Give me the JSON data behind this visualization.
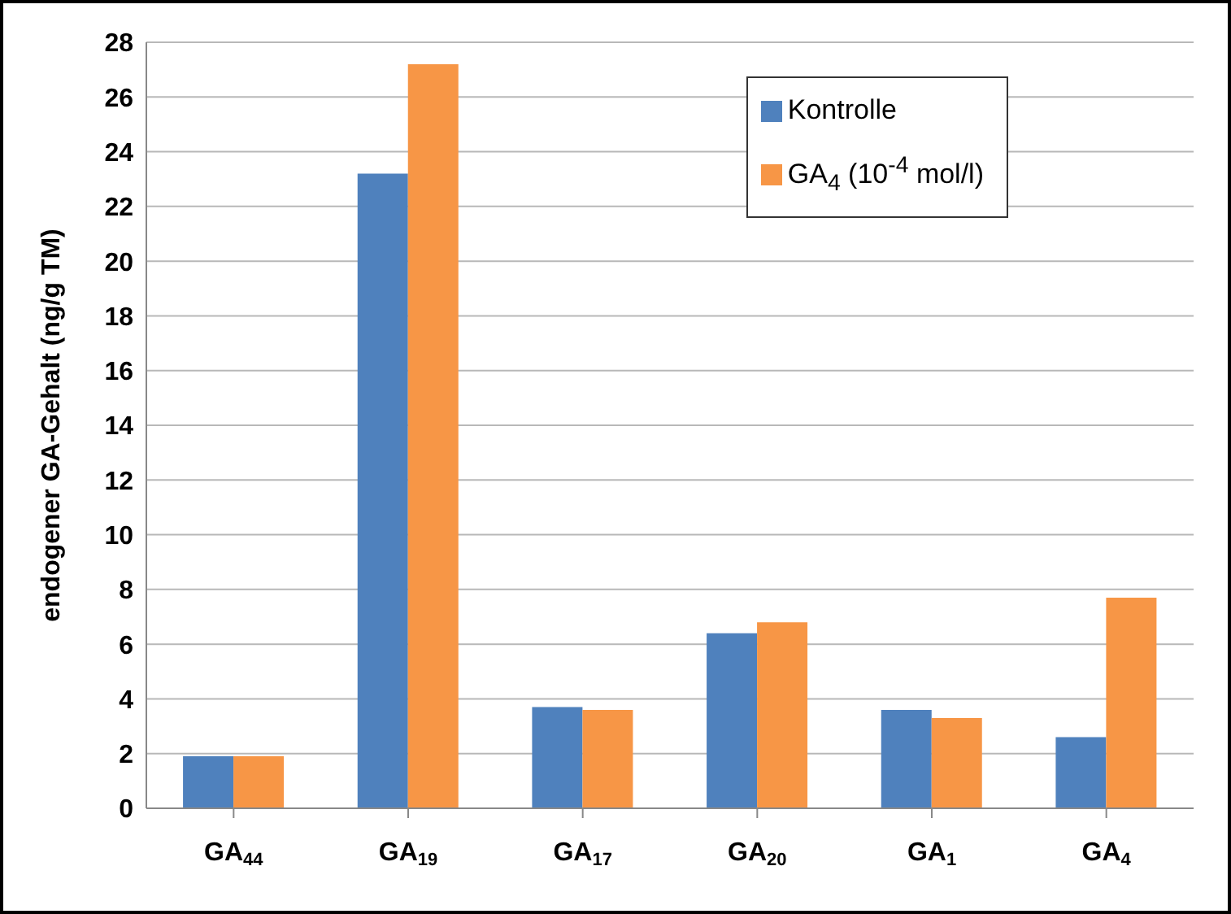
{
  "chart_data": {
    "type": "bar",
    "ylabel": "endogener GA-Gehalt (ng/g TM)",
    "categories": [
      "GA$_{44}$",
      "GA$_{19}$",
      "GA$_{17}$",
      "GA$_{20}$",
      "GA$_{1}$",
      "GA$_{4}$"
    ],
    "series": [
      {
        "name": "Kontrolle",
        "color": "#4f81bd",
        "values": [
          1.9,
          23.2,
          3.7,
          6.4,
          3.6,
          2.6
        ]
      },
      {
        "name": "GA$_{4}$ (10$^{-4}$ mol/l)",
        "color": "#f79646",
        "values": [
          1.9,
          27.2,
          3.6,
          6.8,
          3.3,
          7.7
        ]
      }
    ],
    "ylim": [
      0,
      28
    ],
    "yticks": [
      0,
      2,
      4,
      6,
      8,
      10,
      12,
      14,
      16,
      18,
      20,
      22,
      24,
      26,
      28
    ],
    "grid": "y",
    "legend": "top right"
  }
}
